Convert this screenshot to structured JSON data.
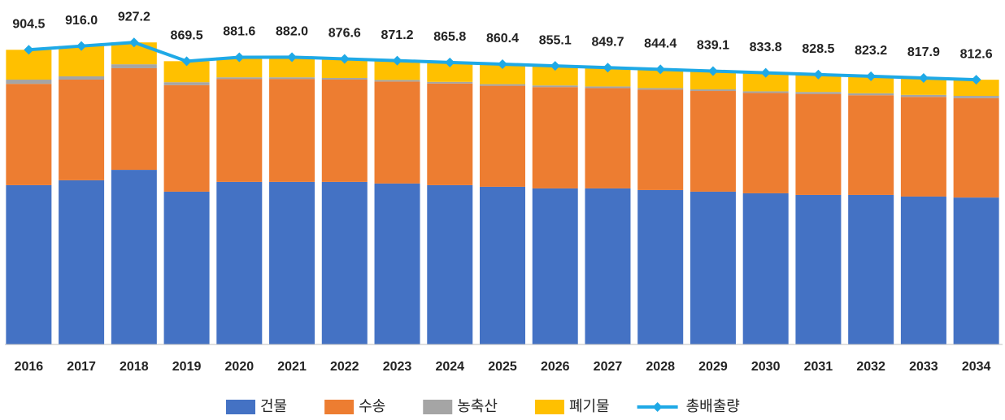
{
  "chart_data": {
    "type": "bar",
    "stacked": true,
    "categories": [
      "2016",
      "2017",
      "2018",
      "2019",
      "2020",
      "2021",
      "2022",
      "2023",
      "2024",
      "2025",
      "2026",
      "2027",
      "2028",
      "2029",
      "2030",
      "2031",
      "2032",
      "2033",
      "2034"
    ],
    "ylim": [
      0,
      1000
    ],
    "legend": "bottom",
    "series": [
      {
        "name": "건물",
        "color": "#4472c4",
        "values": [
          489,
          504,
          536,
          469,
          499,
          499,
          499,
          494,
          489,
          484,
          479,
          479,
          474,
          469,
          464,
          459,
          459,
          454,
          451
        ]
      },
      {
        "name": "수송",
        "color": "#ed7d31",
        "values": [
          311,
          309,
          312,
          327,
          316,
          316,
          314,
          313,
          312,
          310,
          311,
          308,
          308,
          309,
          308,
          310,
          306,
          306,
          305
        ]
      },
      {
        "name": "농축산",
        "color": "#a5a5a5",
        "values": [
          13,
          10,
          12,
          9,
          5,
          5,
          5,
          5,
          5,
          5,
          5,
          5,
          5,
          5,
          5,
          6,
          6,
          6,
          7
        ]
      },
      {
        "name": "폐기물",
        "color": "#ffc000",
        "values": [
          91.5,
          93,
          67.2,
          64.5,
          61.6,
          62.0,
          58.6,
          59.2,
          59.8,
          61.4,
          60.1,
          57.7,
          57.4,
          56.1,
          56.8,
          53.5,
          52.2,
          51.9,
          49.6
        ]
      },
      {
        "name": "총배출량",
        "color": "#1fa9e6",
        "type": "line",
        "values": [
          904.5,
          916.0,
          927.2,
          869.5,
          881.6,
          882.0,
          876.6,
          871.2,
          865.8,
          860.4,
          855.1,
          849.7,
          844.4,
          839.1,
          833.8,
          828.5,
          823.2,
          817.9,
          812.6
        ],
        "value_labels": [
          "904.5",
          "916.0",
          "927.2",
          "869.5",
          "881.6",
          "882.0",
          "876.6",
          "871.2",
          "865.8",
          "860.4",
          "855.1",
          "849.7",
          "844.4",
          "839.1",
          "833.8",
          "828.5",
          "823.2",
          "817.9",
          "812.6"
        ]
      }
    ]
  }
}
